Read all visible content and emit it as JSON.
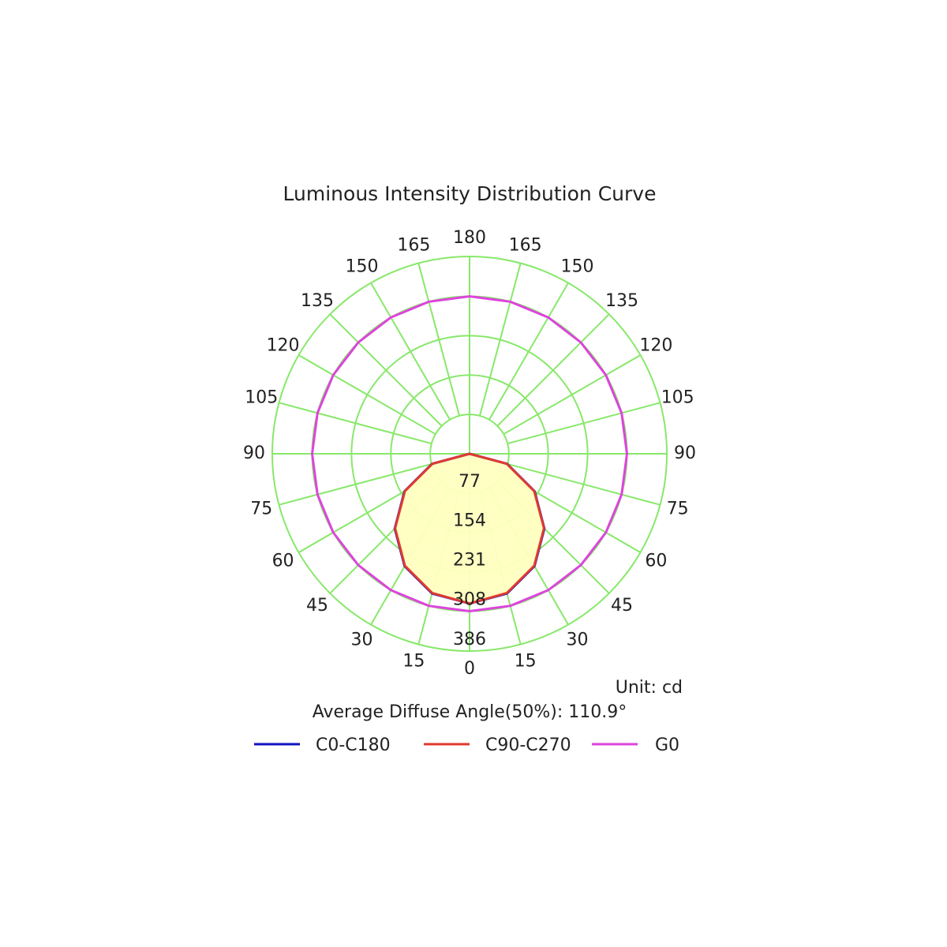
{
  "chart_data": {
    "type": "polar",
    "title": "Luminous Intensity Distribution Curve",
    "annotations": [
      "Unit: cd",
      "Average Diffuse Angle(50%): 110.9°"
    ],
    "angles": [
      0,
      15,
      30,
      45,
      60,
      75,
      90,
      105,
      120,
      135,
      150,
      165,
      180
    ],
    "rlim": [
      0,
      386
    ],
    "rticks": [
      77,
      154,
      231,
      308,
      386
    ],
    "grid_color": "#88e86a",
    "series": [
      {
        "name": "C0-C180",
        "color": "#1010c0",
        "fill_color": "#ffffc0",
        "values": [
          293,
          283,
          254,
          207,
          147,
          76,
          0,
          0,
          0,
          0,
          0,
          0,
          0
        ]
      },
      {
        "name": "C90-C270",
        "color": "#e03a30",
        "fill_color": "#ffffc0",
        "values": [
          293,
          282,
          253,
          206,
          146,
          75,
          0,
          0,
          0,
          0,
          0,
          0,
          0
        ]
      },
      {
        "name": "G0",
        "color": "#dd44dd",
        "values": [
          308,
          308,
          308,
          308,
          308,
          308,
          308,
          308,
          308,
          308,
          308,
          308,
          308
        ]
      }
    ]
  }
}
